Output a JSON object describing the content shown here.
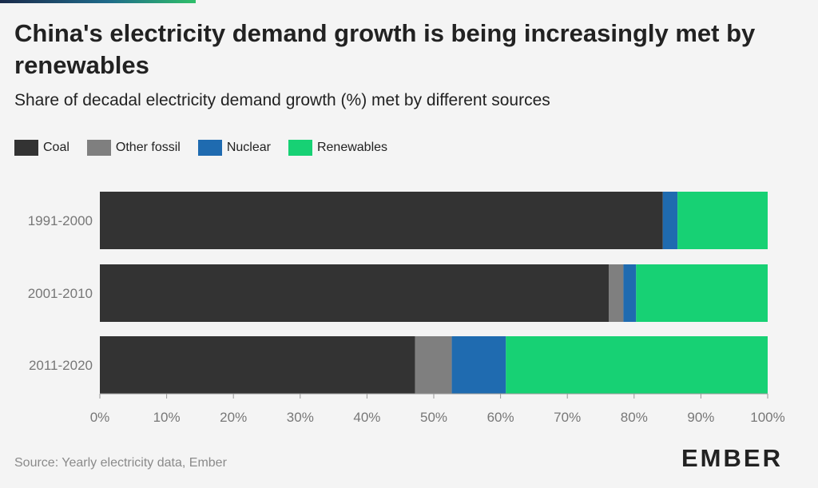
{
  "header": {
    "title": "China's electricity demand growth is being increasingly met by renewables",
    "subtitle": "Share of decadal electricity demand growth (%) met by different sources"
  },
  "footer": {
    "source": "Source: Yearly electricity data, Ember",
    "logo_text": "EMBER"
  },
  "chart_data": {
    "type": "bar",
    "orientation": "horizontal",
    "stacked": true,
    "title": "China's electricity demand growth is being increasingly met by renewables",
    "subtitle": "Share of decadal electricity demand growth (%) met by different sources",
    "categories": [
      "1991-2000",
      "2001-2010",
      "2011-2020"
    ],
    "series": [
      {
        "name": "Coal",
        "color": "#333333",
        "values": [
          84.3,
          76.2,
          47.2
        ]
      },
      {
        "name": "Other fossil",
        "color": "#7f7f7f",
        "values": [
          0.0,
          2.2,
          5.5
        ]
      },
      {
        "name": "Nuclear",
        "color": "#1f6bb0",
        "values": [
          2.2,
          1.9,
          8.1
        ]
      },
      {
        "name": "Renewables",
        "color": "#17d174",
        "values": [
          13.5,
          19.7,
          39.2
        ]
      }
    ],
    "x_ticks": [
      "0%",
      "10%",
      "20%",
      "30%",
      "40%",
      "50%",
      "60%",
      "70%",
      "80%",
      "90%",
      "100%"
    ],
    "xlim": [
      0,
      100
    ],
    "grid": false,
    "legend_placement": "top-left"
  }
}
